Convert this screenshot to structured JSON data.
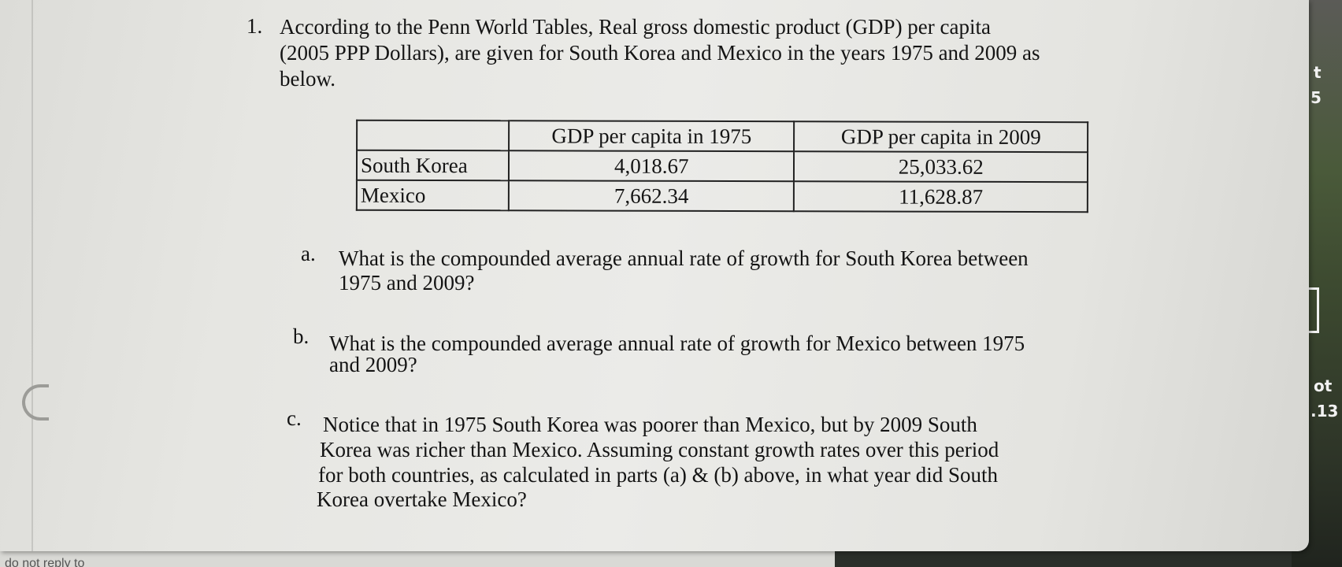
{
  "question": {
    "number": "1.",
    "intro_lines": [
      "According to the Penn World Tables, Real gross domestic product (GDP) per capita",
      "(2005 PPP Dollars), are given for South Korea and Mexico in the years 1975 and 2009 as",
      "below."
    ]
  },
  "table": {
    "headers": [
      "",
      "GDP per capita in 1975",
      "GDP per capita in 2009"
    ],
    "rows": [
      {
        "country": "South Korea",
        "gdp_1975": "4,018.67",
        "gdp_2009": "25,033.62"
      },
      {
        "country": "Mexico",
        "gdp_1975": "7,662.34",
        "gdp_2009": "11,628.87"
      }
    ]
  },
  "parts": [
    {
      "letter": "a.",
      "lines": [
        "What is the compounded average annual rate of growth for South Korea between",
        "1975 and 2009?"
      ]
    },
    {
      "letter": "b.",
      "lines": [
        "What is the compounded average annual rate of growth for Mexico between 1975",
        "and 2009?"
      ]
    },
    {
      "letter": "c.",
      "lines": [
        "Notice that in 1975 South Korea was poorer than Mexico, but by 2009 South",
        "Korea was richer than Mexico. Assuming constant growth rates over this period",
        "for both countries, as calculated in parts (a) & (b) above, in what year did South",
        "Korea overtake Mexico?"
      ]
    }
  ],
  "background_screen": {
    "top_char": "t",
    "top_number": "5",
    "mid_text": "ot",
    "mid_number": ".13"
  },
  "bottom_partial_text": "do not reply to"
}
